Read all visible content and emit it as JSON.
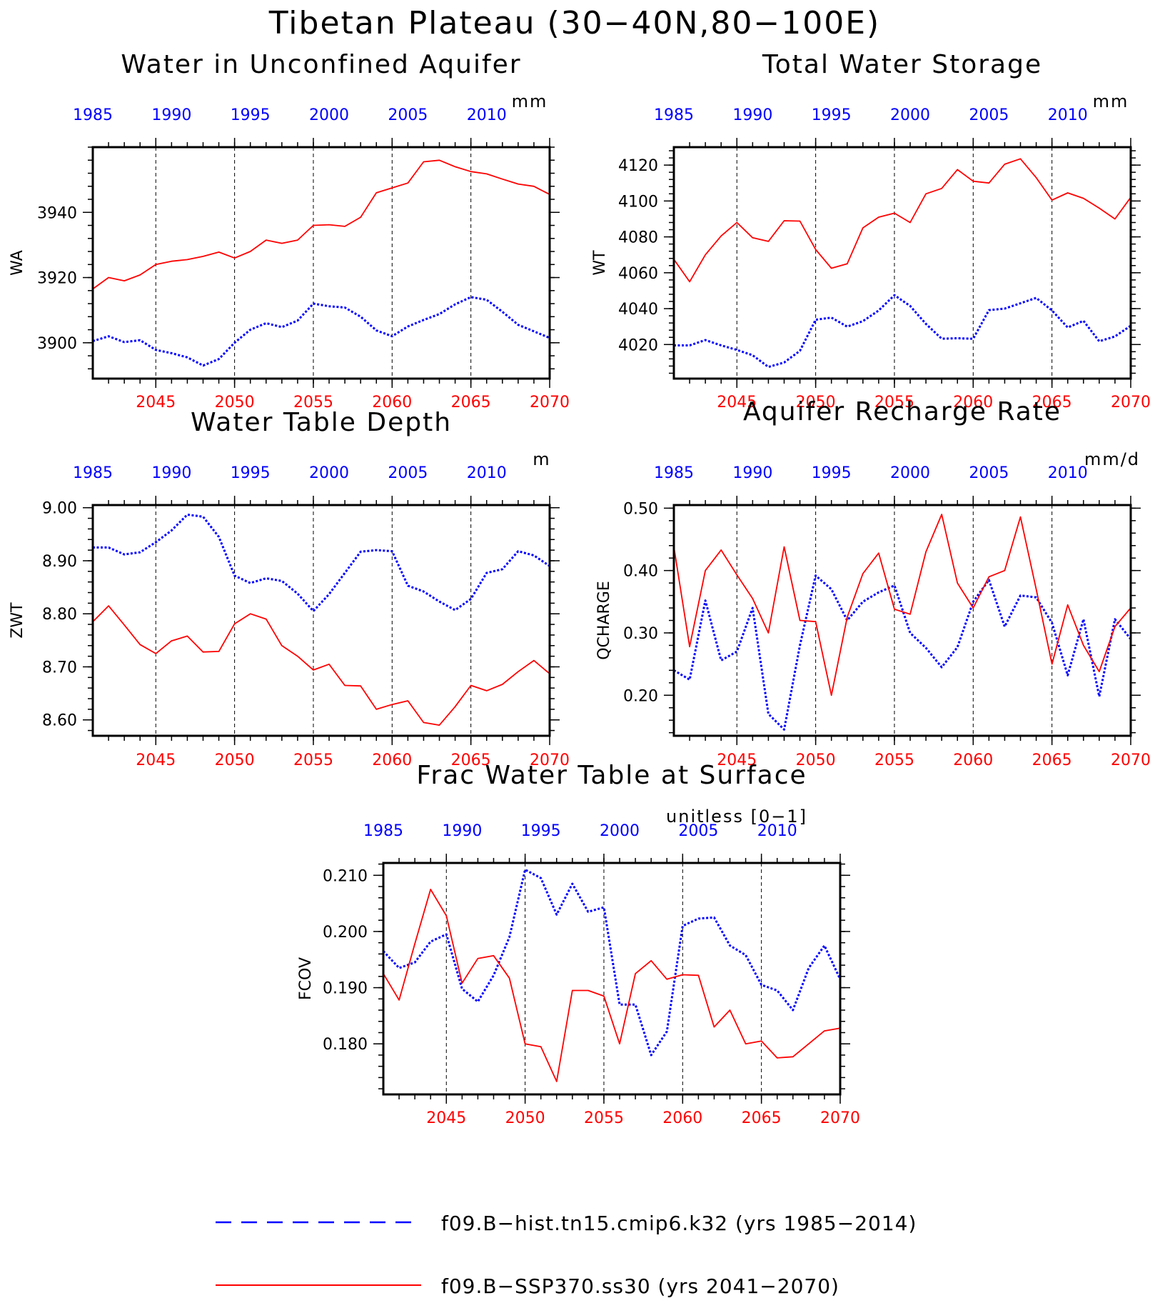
{
  "main_title": "Tibetan Plateau (30−40N,80−100E)",
  "colors": {
    "hist": "#0000ff",
    "future": "#ff0000",
    "axis": "#000000"
  },
  "legend": {
    "hist_label": "f09.B−hist.tn15.cmip6.k32 (yrs 1985−2014)",
    "future_label": "f09.B−SSP370.ss30 (yrs 2041−2070)"
  },
  "chart_data": [
    {
      "type": "line",
      "title": "Water in Unconfined Aquifer",
      "units": "mm",
      "ylabel": "WA",
      "ylim": [
        3889,
        3960
      ],
      "yticks": [
        3900,
        3920,
        3940
      ],
      "yticklabels": [
        "3900",
        "3920",
        "3940"
      ],
      "bottom_xticks": [
        2045,
        2050,
        2055,
        2060,
        2065,
        2070
      ],
      "top_xticks": [
        1985,
        1990,
        1995,
        2000,
        2005,
        2010
      ],
      "series": [
        {
          "name": "f09.B−hist.tn15.cmip6.k32 (yrs 1985−2014)",
          "x_start": 1985,
          "values": [
            3900.5,
            3902,
            3900.2,
            3900.8,
            3897.8,
            3896.8,
            3895.5,
            3893,
            3895,
            3900,
            3904,
            3906,
            3904.8,
            3906.8,
            3912,
            3911.2,
            3910.8,
            3908,
            3903.8,
            3902,
            3905,
            3907,
            3908.8,
            3911.8,
            3914,
            3913.2,
            3909.5,
            3905.5,
            3903.5,
            3901.5
          ]
        },
        {
          "name": "f09.B−SSP370.ss30 (yrs 2041−2070)",
          "x_start": 2041,
          "values": [
            3916.5,
            3920,
            3919,
            3920.8,
            3924,
            3925,
            3925.5,
            3926.5,
            3927.8,
            3926,
            3928,
            3931.5,
            3930.5,
            3931.5,
            3936,
            3936.2,
            3935.7,
            3938.5,
            3946,
            3947.5,
            3949,
            3955.5,
            3956,
            3954,
            3952.5,
            3951.8,
            3950.2,
            3948.7,
            3948,
            3945.5
          ]
        }
      ]
    },
    {
      "type": "line",
      "title": "Total Water Storage",
      "units": "mm",
      "ylabel": "WT",
      "ylim": [
        4001,
        4130
      ],
      "yticks": [
        4020,
        4040,
        4060,
        4080,
        4100,
        4120
      ],
      "yticklabels": [
        "4020",
        "4040",
        "4060",
        "4080",
        "4100",
        "4120"
      ],
      "bottom_xticks": [
        2045,
        2050,
        2055,
        2060,
        2065,
        2070
      ],
      "top_xticks": [
        1985,
        1990,
        1995,
        2000,
        2005,
        2010
      ],
      "series": [
        {
          "name": "f09.B−hist.tn15.cmip6.k32 (yrs 1985−2014)",
          "x_start": 1985,
          "values": [
            4019.5,
            4019.5,
            4022.5,
            4019.5,
            4017,
            4014,
            4007.5,
            4010,
            4016.5,
            4033.8,
            4035,
            4030,
            4033,
            4039,
            4047.5,
            4041.5,
            4031.5,
            4023.2,
            4023.5,
            4023.2,
            4039.2,
            4040,
            4043,
            4046,
            4039,
            4029.5,
            4033.2,
            4021.8,
            4024.5,
            4030.5
          ]
        },
        {
          "name": "f09.B−SSP370.ss30 (yrs 2041−2070)",
          "x_start": 2041,
          "values": [
            4067.5,
            4055,
            4070,
            4080.5,
            4088,
            4079.5,
            4077.5,
            4089,
            4088.8,
            4073,
            4062.5,
            4065,
            4085,
            4091,
            4093.2,
            4088,
            4104,
            4107,
            4117.5,
            4111,
            4110,
            4120.5,
            4123.5,
            4113,
            4100.5,
            4104.5,
            4101.5,
            4096,
            4090,
            4102
          ]
        }
      ]
    },
    {
      "type": "line",
      "title": "Water Table Depth",
      "units": "m",
      "ylabel": "ZWT",
      "ylim": [
        8.57,
        9.005
      ],
      "yticks": [
        8.6,
        8.7,
        8.8,
        8.9,
        9.0
      ],
      "yticklabels": [
        "8.60",
        "8.70",
        "8.80",
        "8.90",
        "9.00"
      ],
      "bottom_xticks": [
        2045,
        2050,
        2055,
        2060,
        2065,
        2070
      ],
      "top_xticks": [
        1985,
        1990,
        1995,
        2000,
        2005,
        2010
      ],
      "series": [
        {
          "name": "f09.B−hist.tn15.cmip6.k32 (yrs 1985−2014)",
          "x_start": 1985,
          "values": [
            8.925,
            8.925,
            8.912,
            8.916,
            8.935,
            8.957,
            8.987,
            8.983,
            8.945,
            8.872,
            8.858,
            8.867,
            8.862,
            8.838,
            8.805,
            8.837,
            8.877,
            8.917,
            8.92,
            8.918,
            8.853,
            8.842,
            8.823,
            8.807,
            8.828,
            8.877,
            8.884,
            8.918,
            8.91,
            8.89
          ]
        },
        {
          "name": "f09.B−SSP370.ss30 (yrs 2041−2070)",
          "x_start": 2041,
          "values": [
            8.785,
            8.815,
            8.779,
            8.742,
            8.725,
            8.749,
            8.758,
            8.728,
            8.729,
            8.781,
            8.8,
            8.79,
            8.74,
            8.72,
            8.694,
            8.705,
            8.665,
            8.664,
            8.62,
            8.629,
            8.636,
            8.595,
            8.59,
            8.625,
            8.665,
            8.655,
            8.667,
            8.691,
            8.712,
            8.687
          ]
        }
      ]
    },
    {
      "type": "line",
      "title": "Aquifer Recharge Rate",
      "units": "mm/d",
      "ylabel": "QCHARGE",
      "ylim": [
        0.135,
        0.505
      ],
      "yticks": [
        0.2,
        0.3,
        0.4,
        0.5
      ],
      "yticklabels": [
        "0.20",
        "0.30",
        "0.40",
        "0.50"
      ],
      "bottom_xticks": [
        2045,
        2050,
        2055,
        2060,
        2065,
        2070
      ],
      "top_xticks": [
        1985,
        1990,
        1995,
        2000,
        2005,
        2010
      ],
      "series": [
        {
          "name": "f09.B−hist.tn15.cmip6.k32 (yrs 1985−2014)",
          "x_start": 1985,
          "values": [
            0.24,
            0.225,
            0.352,
            0.256,
            0.27,
            0.34,
            0.17,
            0.145,
            0.28,
            0.392,
            0.37,
            0.32,
            0.35,
            0.365,
            0.376,
            0.3,
            0.276,
            0.245,
            0.277,
            0.35,
            0.385,
            0.31,
            0.36,
            0.357,
            0.316,
            0.232,
            0.322,
            0.198,
            0.322,
            0.29
          ]
        },
        {
          "name": "f09.B−SSP370.ss30 (yrs 2041−2070)",
          "x_start": 2041,
          "values": [
            0.438,
            0.278,
            0.4,
            0.433,
            0.393,
            0.355,
            0.3,
            0.438,
            0.32,
            0.318,
            0.2,
            0.325,
            0.395,
            0.428,
            0.338,
            0.33,
            0.43,
            0.49,
            0.38,
            0.34,
            0.39,
            0.4,
            0.486,
            0.37,
            0.25,
            0.345,
            0.28,
            0.238,
            0.31,
            0.34
          ]
        }
      ]
    },
    {
      "type": "line",
      "title": "Frac Water Table at Surface",
      "units": "unitless [0−1]",
      "ylabel": "FCOV",
      "ylim": [
        0.171,
        0.2122
      ],
      "yticks": [
        0.18,
        0.19,
        0.2,
        0.21
      ],
      "yticklabels": [
        "0.180",
        "0.190",
        "0.200",
        "0.210"
      ],
      "bottom_xticks": [
        2045,
        2050,
        2055,
        2060,
        2065,
        2070
      ],
      "top_xticks": [
        1985,
        1990,
        1995,
        2000,
        2005,
        2010
      ],
      "series": [
        {
          "name": "f09.B−hist.tn15.cmip6.k32 (yrs 1985−2014)",
          "x_start": 1985,
          "values": [
            0.1965,
            0.1935,
            0.1945,
            0.1982,
            0.1995,
            0.1898,
            0.1875,
            0.1922,
            0.199,
            0.211,
            0.2095,
            0.203,
            0.2085,
            0.2035,
            0.2043,
            0.187,
            0.187,
            0.178,
            0.1822,
            0.201,
            0.2023,
            0.2025,
            0.1975,
            0.1958,
            0.1905,
            0.1895,
            0.186,
            0.1935,
            0.1975,
            0.1915
          ]
        },
        {
          "name": "f09.B−SSP370.ss30 (yrs 2041−2070)",
          "x_start": 2041,
          "values": [
            0.1925,
            0.1878,
            0.1978,
            0.2075,
            0.2028,
            0.1908,
            0.1952,
            0.1957,
            0.1917,
            0.18,
            0.1795,
            0.1733,
            0.1895,
            0.1895,
            0.1885,
            0.18,
            0.1925,
            0.1948,
            0.1915,
            0.1923,
            0.1922,
            0.183,
            0.186,
            0.18,
            0.1805,
            0.1775,
            0.1777,
            0.18,
            0.1823,
            0.1828
          ]
        }
      ]
    }
  ]
}
